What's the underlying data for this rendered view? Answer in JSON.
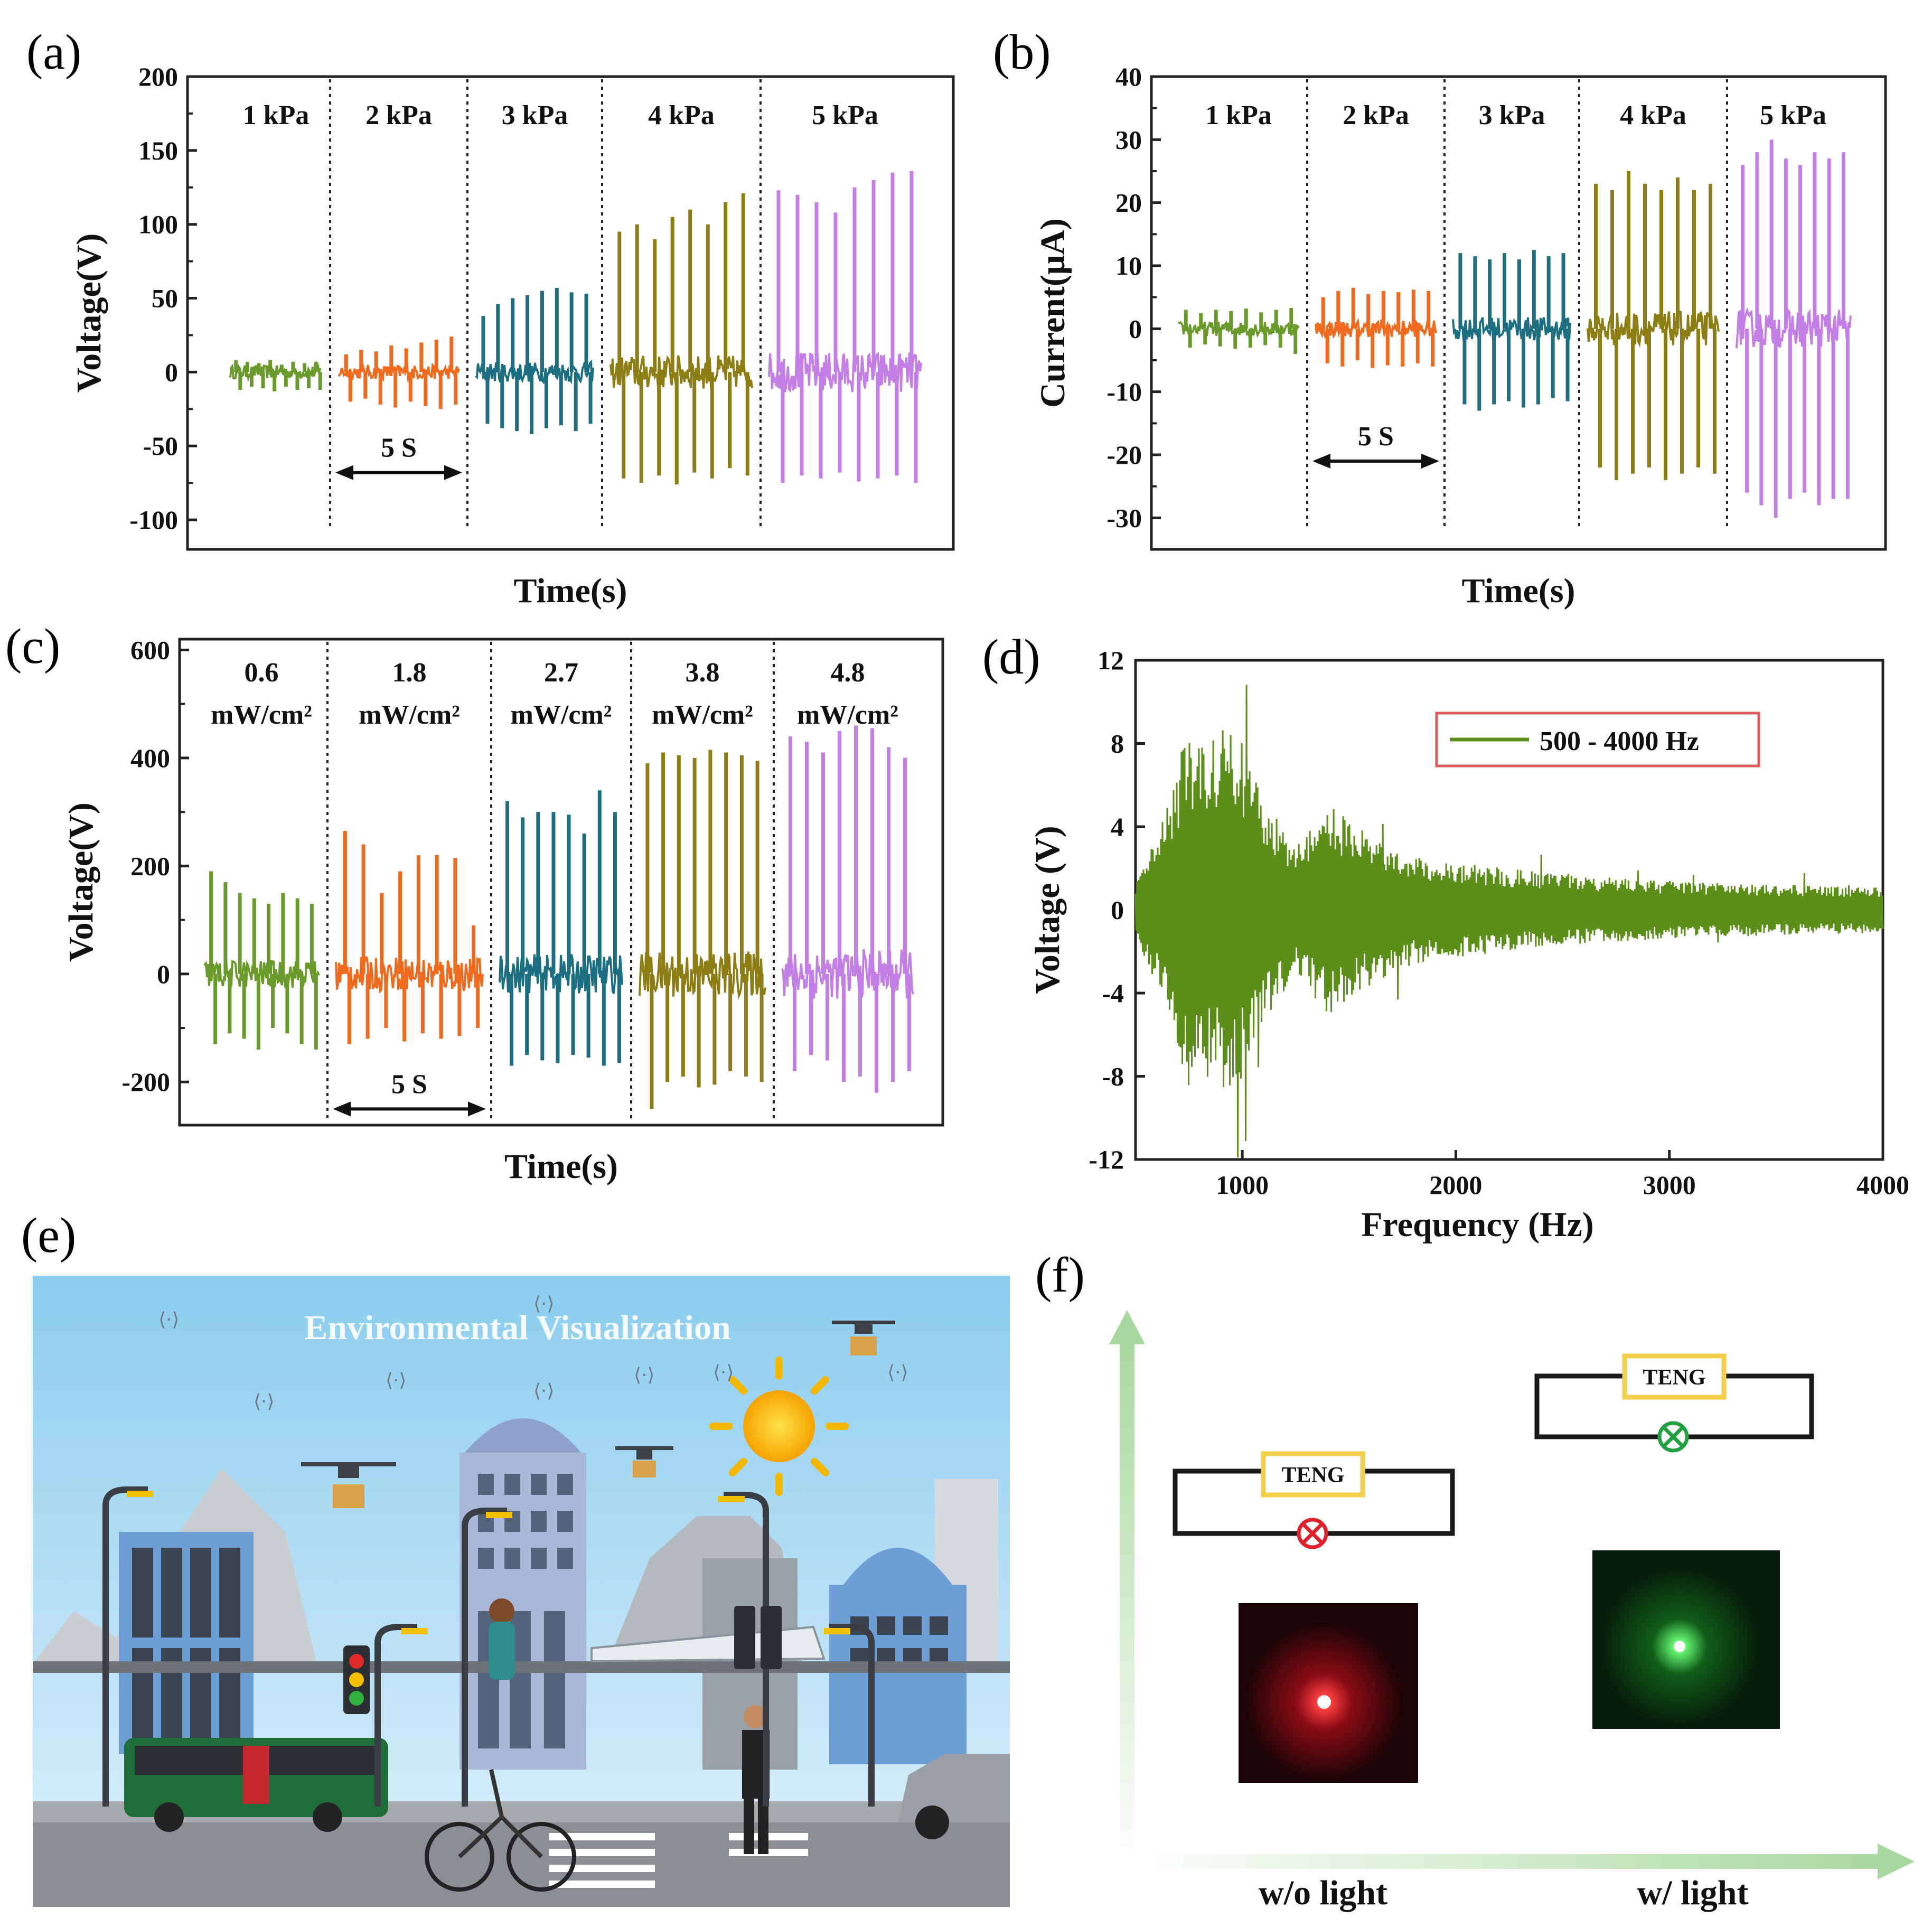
{
  "colors": {
    "green": "#6a9a2c",
    "orange": "#f06a1e",
    "teal": "#1c6f80",
    "olive": "#8c7d14",
    "violet": "#c47fe6",
    "dgreen": "#5c8f1a",
    "red_circle": "#e0202a",
    "green_circle": "#20a040",
    "teng_box": "#f2d04a"
  },
  "panels": {
    "a": {
      "label": "(a)"
    },
    "b": {
      "label": "(b)"
    },
    "c": {
      "label": "(c)"
    },
    "d": {
      "label": "(d)"
    },
    "e": {
      "label": "(e)",
      "title": "Environmental Visualization",
      "alt": "smart city illustration"
    },
    "f": {
      "label": "(f)",
      "teng_label": "TENG",
      "left_caption": "w/o light",
      "right_caption": "w/ light"
    }
  },
  "chart_data": [
    {
      "id": "a",
      "type": "line",
      "title": "",
      "xlabel": "Time(s)",
      "ylabel": "Voltage(V)",
      "ylim": [
        -120,
        200
      ],
      "yticks": [
        -100,
        -50,
        0,
        50,
        100,
        150,
        200
      ],
      "segments_label_annotation": "5 S",
      "series": [
        {
          "name": "1 kPa",
          "color_key": "green",
          "peaks_pos": [
            8,
            7,
            6,
            8,
            5,
            7,
            6,
            7
          ],
          "peaks_neg": [
            -12,
            -10,
            -11,
            -13,
            -10,
            -12,
            -11,
            -12
          ]
        },
        {
          "name": "2 kPa",
          "color_key": "orange",
          "peaks_pos": [
            12,
            15,
            14,
            18,
            16,
            20,
            22,
            24
          ],
          "peaks_neg": [
            -20,
            -18,
            -22,
            -24,
            -20,
            -23,
            -25,
            -22
          ]
        },
        {
          "name": "3 kPa",
          "color_key": "teal",
          "peaks_pos": [
            38,
            46,
            50,
            52,
            55,
            57,
            54,
            53
          ],
          "peaks_neg": [
            -35,
            -38,
            -40,
            -42,
            -38,
            -36,
            -40,
            -35
          ]
        },
        {
          "name": "4 kPa",
          "color_key": "olive",
          "peaks_pos": [
            95,
            100,
            90,
            105,
            110,
            100,
            115,
            121
          ],
          "peaks_neg": [
            -72,
            -75,
            -70,
            -76,
            -68,
            -72,
            -65,
            -70
          ]
        },
        {
          "name": "5 kPa",
          "color_key": "violet",
          "peaks_pos": [
            123,
            120,
            115,
            108,
            125,
            130,
            135,
            136
          ],
          "peaks_neg": [
            -75,
            -70,
            -72,
            -68,
            -74,
            -72,
            -70,
            -75
          ]
        }
      ]
    },
    {
      "id": "b",
      "type": "line",
      "title": "",
      "xlabel": "Time(s)",
      "ylabel": "Current(μA)",
      "ylim": [
        -35,
        40
      ],
      "yticks": [
        -30,
        -20,
        -10,
        0,
        10,
        20,
        30,
        40
      ],
      "segments_label_annotation": "5 S",
      "series": [
        {
          "name": "1 kPa",
          "color_key": "green",
          "peaks_pos": [
            3,
            2.5,
            3,
            2.8,
            3.2,
            2.6,
            3,
            3.3
          ],
          "peaks_neg": [
            -3,
            -2.5,
            -2.8,
            -3.2,
            -3,
            -2.6,
            -3,
            -4
          ]
        },
        {
          "name": "2 kPa",
          "color_key": "orange",
          "peaks_pos": [
            5,
            6,
            6.5,
            5.5,
            6,
            5.8,
            6.2,
            6
          ],
          "peaks_neg": [
            -5.5,
            -6,
            -5,
            -6.2,
            -5.8,
            -6,
            -5.5,
            -6
          ]
        },
        {
          "name": "3 kPa",
          "color_key": "teal",
          "peaks_pos": [
            12,
            11.5,
            11,
            12,
            11,
            12.5,
            11.5,
            12
          ],
          "peaks_neg": [
            -12,
            -13,
            -12,
            -11.5,
            -12.5,
            -12,
            -11,
            -11.5
          ]
        },
        {
          "name": "4 kPa",
          "color_key": "olive",
          "peaks_pos": [
            23,
            22,
            25,
            23,
            22,
            24,
            22,
            23
          ],
          "peaks_neg": [
            -22,
            -24,
            -23,
            -22,
            -24,
            -23,
            -22,
            -23
          ]
        },
        {
          "name": "5 kPa",
          "color_key": "violet",
          "peaks_pos": [
            26,
            28,
            30,
            27,
            26,
            28,
            27,
            28
          ],
          "peaks_neg": [
            -26,
            -28,
            -30,
            -27,
            -26,
            -28,
            -27,
            -27
          ]
        }
      ]
    },
    {
      "id": "c",
      "type": "line",
      "title": "",
      "xlabel": "Time(s)",
      "ylabel": "Voltage(V)",
      "ylim": [
        -280,
        620
      ],
      "yticks": [
        -200,
        0,
        200,
        400,
        600
      ],
      "segments_label_annotation": "5 S",
      "series": [
        {
          "name_line1": "0.6",
          "name_line2": "mW/cm²",
          "color_key": "green",
          "peaks_pos": [
            190,
            170,
            150,
            140,
            130,
            150,
            140,
            130
          ],
          "peaks_neg": [
            -130,
            -110,
            -120,
            -140,
            -100,
            -110,
            -130,
            -140
          ]
        },
        {
          "name_line1": "1.8",
          "name_line2": "mW/cm²",
          "color_key": "orange",
          "peaks_pos": [
            265,
            240,
            150,
            190,
            220,
            220,
            215,
            90
          ],
          "peaks_neg": [
            -130,
            -120,
            -100,
            -125,
            -110,
            -120,
            -115,
            -100
          ]
        },
        {
          "name_line1": "2.7",
          "name_line2": "mW/cm²",
          "color_key": "teal",
          "peaks_pos": [
            320,
            290,
            300,
            300,
            295,
            260,
            340,
            300
          ],
          "peaks_neg": [
            -170,
            -150,
            -160,
            -165,
            -150,
            -155,
            -170,
            -165
          ]
        },
        {
          "name_line1": "3.8",
          "name_line2": "mW/cm²",
          "color_key": "olive",
          "peaks_pos": [
            390,
            410,
            405,
            400,
            415,
            410,
            405,
            395
          ],
          "peaks_neg": [
            -250,
            -200,
            -190,
            -210,
            -205,
            -180,
            -190,
            -200
          ]
        },
        {
          "name_line1": "4.8",
          "name_line2": "mW/cm²",
          "color_key": "violet",
          "peaks_pos": [
            440,
            430,
            410,
            450,
            460,
            455,
            420,
            400
          ],
          "peaks_neg": [
            -180,
            -150,
            -160,
            -200,
            -190,
            -220,
            -200,
            -180
          ]
        }
      ]
    },
    {
      "id": "d",
      "type": "line",
      "title": "",
      "xlabel": "Frequency (Hz)",
      "ylabel": "Voltage (V)",
      "xlim": [
        500,
        4000
      ],
      "ylim": [
        -12,
        12
      ],
      "xticks": [
        1000,
        2000,
        3000,
        4000
      ],
      "yticks": [
        -12,
        -8,
        -4,
        0,
        4,
        8,
        12
      ],
      "legend": "500 - 4000 Hz",
      "envelope": [
        {
          "x": 500,
          "amp": 1.2
        },
        {
          "x": 650,
          "amp": 5.0
        },
        {
          "x": 750,
          "amp": 8.8
        },
        {
          "x": 850,
          "amp": 8.0
        },
        {
          "x": 950,
          "amp": 9.2
        },
        {
          "x": 1100,
          "amp": 5.5
        },
        {
          "x": 1250,
          "amp": 3.0
        },
        {
          "x": 1400,
          "amp": 5.2
        },
        {
          "x": 1600,
          "amp": 3.6
        },
        {
          "x": 1800,
          "amp": 2.6
        },
        {
          "x": 2000,
          "amp": 2.3
        },
        {
          "x": 2400,
          "amp": 1.8
        },
        {
          "x": 2800,
          "amp": 1.5
        },
        {
          "x": 3200,
          "amp": 1.3
        },
        {
          "x": 3600,
          "amp": 1.2
        },
        {
          "x": 4000,
          "amp": 1.1
        }
      ]
    }
  ]
}
